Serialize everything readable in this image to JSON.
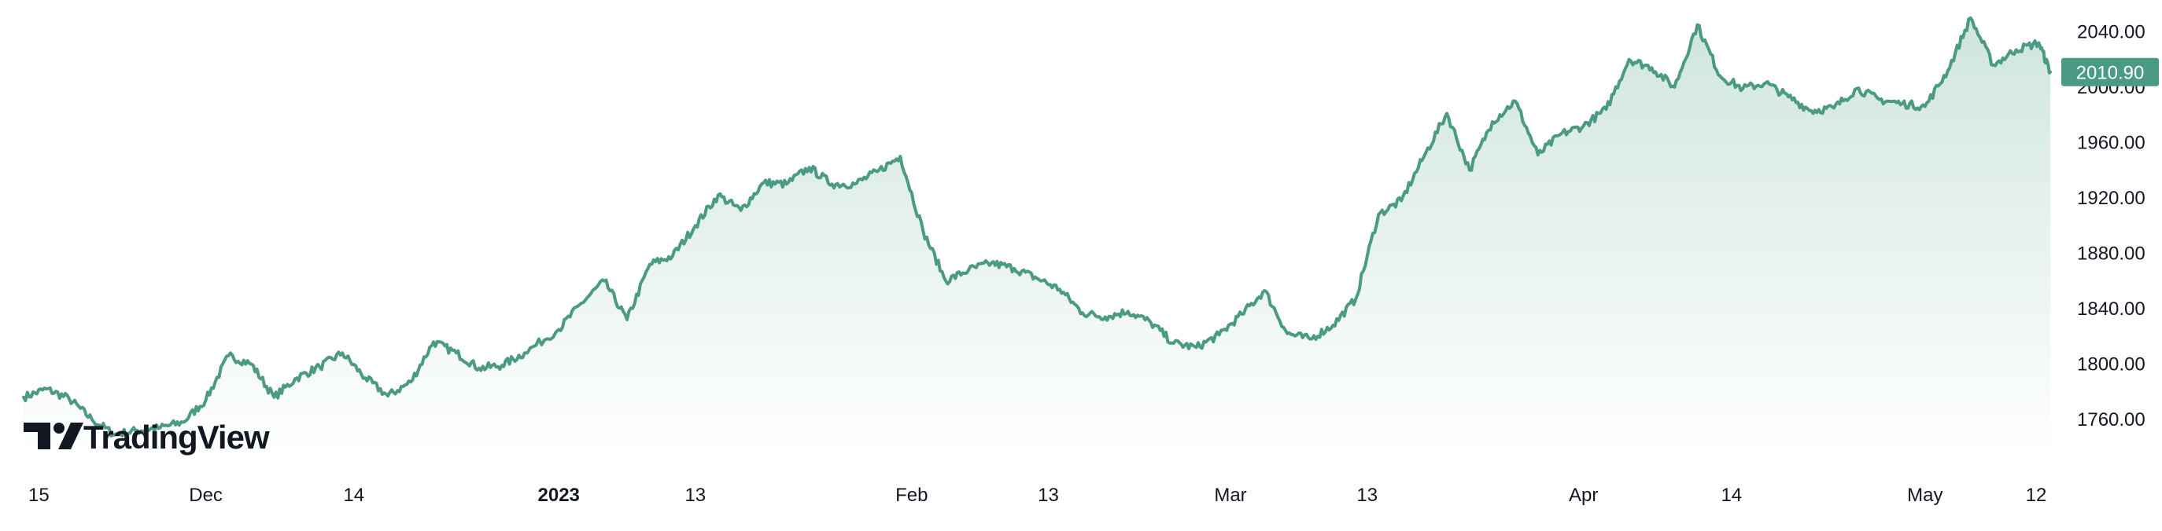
{
  "brand": {
    "name": "TradingView"
  },
  "colors": {
    "line": "#4a9a84",
    "area_top": "#cfe5de",
    "area_bottom": "#ffffff",
    "price_tag": "#4a9a84",
    "text": "#131722"
  },
  "last_price_label": "2010.90",
  "chart_data": {
    "type": "area",
    "series": [
      {
        "x": [
          "2022-11-15",
          "2022-11-17",
          "2022-11-19",
          "2022-11-21",
          "2022-11-23",
          "2022-11-25",
          "2022-11-27",
          "2022-11-29",
          "2022-12-01",
          "2022-12-03",
          "2022-12-05",
          "2022-12-07",
          "2022-12-09",
          "2022-12-11",
          "2022-12-13",
          "2022-12-15",
          "2022-12-17",
          "2022-12-19",
          "2022-12-21",
          "2022-12-23",
          "2022-12-25",
          "2022-12-27",
          "2022-12-29",
          "2023-01-01",
          "2023-01-03",
          "2023-01-05",
          "2023-01-07",
          "2023-01-09",
          "2023-01-11",
          "2023-01-13",
          "2023-01-15",
          "2023-01-17",
          "2023-01-19",
          "2023-01-21",
          "2023-01-23",
          "2023-01-25",
          "2023-01-27",
          "2023-01-29",
          "2023-01-31",
          "2023-02-02",
          "2023-02-04",
          "2023-02-06",
          "2023-02-08",
          "2023-02-10",
          "2023-02-12",
          "2023-02-14",
          "2023-02-16",
          "2023-02-18",
          "2023-02-20",
          "2023-02-22",
          "2023-02-24",
          "2023-02-26",
          "2023-02-28",
          "2023-03-02",
          "2023-03-04",
          "2023-03-06",
          "2023-03-08",
          "2023-03-10",
          "2023-03-12",
          "2023-03-14",
          "2023-03-16",
          "2023-03-18",
          "2023-03-20",
          "2023-03-22",
          "2023-03-24",
          "2023-03-26",
          "2023-03-28",
          "2023-03-30",
          "2023-04-01",
          "2023-04-03",
          "2023-04-05",
          "2023-04-07",
          "2023-04-09",
          "2023-04-11",
          "2023-04-13",
          "2023-04-15",
          "2023-04-17",
          "2023-04-19",
          "2023-04-21",
          "2023-04-23",
          "2023-04-25",
          "2023-04-27",
          "2023-04-29",
          "2023-05-01",
          "2023-05-03",
          "2023-05-05",
          "2023-05-07",
          "2023-05-09",
          "2023-05-11",
          "2023-05-12"
        ],
        "y": [
          1776,
          1782,
          1775,
          1760,
          1749,
          1752,
          1754,
          1758,
          1774,
          1806,
          1800,
          1776,
          1790,
          1798,
          1808,
          1790,
          1777,
          1787,
          1816,
          1808,
          1797,
          1799,
          1808,
          1825,
          1844,
          1860,
          1832,
          1872,
          1878,
          1900,
          1922,
          1911,
          1931,
          1930,
          1942,
          1930,
          1930,
          1939,
          1950,
          1896,
          1860,
          1868,
          1873,
          1869,
          1862,
          1854,
          1837,
          1834,
          1838,
          1830,
          1815,
          1812,
          1821,
          1836,
          1853,
          1822,
          1818,
          1828,
          1847,
          1908,
          1918,
          1950,
          1981,
          1940,
          1975,
          1990,
          1951,
          1966,
          1972,
          1984,
          2020,
          2014,
          2000,
          2045,
          2008,
          1999,
          2003,
          1993,
          1983,
          1985,
          1999,
          1991,
          1988,
          1986,
          2012,
          2050,
          2016,
          2027,
          2032,
          2010.9
        ]
      }
    ],
    "ylim": [
      1735,
      2055
    ],
    "yticks": [
      "2040.00",
      "2000.00",
      "1960.00",
      "1920.00",
      "1880.00",
      "1840.00",
      "1800.00",
      "1760.00"
    ],
    "xticks": [
      {
        "label": "15",
        "date": "2022-11-15",
        "bold": false
      },
      {
        "label": "Dec",
        "date": "2022-12-01",
        "bold": false
      },
      {
        "label": "14",
        "date": "2022-12-14",
        "bold": false
      },
      {
        "label": "2023",
        "date": "2023-01-01",
        "bold": true
      },
      {
        "label": "13",
        "date": "2023-01-13",
        "bold": false
      },
      {
        "label": "Feb",
        "date": "2023-02-01",
        "bold": false
      },
      {
        "label": "13",
        "date": "2023-02-13",
        "bold": false
      },
      {
        "label": "Mar",
        "date": "2023-03-01",
        "bold": false
      },
      {
        "label": "13",
        "date": "2023-03-13",
        "bold": false
      },
      {
        "label": "Apr",
        "date": "2023-04-01",
        "bold": false
      },
      {
        "label": "14",
        "date": "2023-04-14",
        "bold": false
      },
      {
        "label": "May",
        "date": "2023-05-01",
        "bold": false
      },
      {
        "label": "12",
        "date": "2023-05-12",
        "bold": false
      }
    ],
    "grid": false,
    "title": "",
    "xlabel": "",
    "ylabel": ""
  }
}
